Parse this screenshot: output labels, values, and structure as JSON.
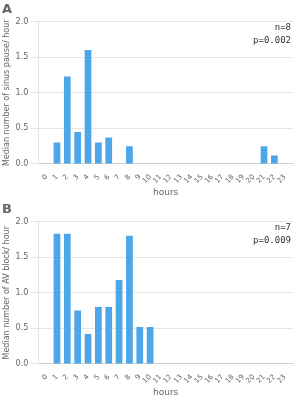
{
  "chart_data": [
    {
      "type": "bar",
      "title": "A",
      "annotation": [
        "n=8",
        "p=0.002"
      ],
      "xlabel": "hours",
      "ylabel": "Median number of sinus pause/ hour",
      "x": [
        0,
        1,
        2,
        3,
        4,
        5,
        6,
        7,
        8,
        9,
        10,
        11,
        12,
        13,
        14,
        15,
        16,
        17,
        18,
        19,
        20,
        21,
        22,
        23
      ],
      "values": [
        0.0,
        0.3,
        1.23,
        0.45,
        1.6,
        0.3,
        0.37,
        0.0,
        0.25,
        0.0,
        0.0,
        0.0,
        0.0,
        0.0,
        0.0,
        0.0,
        0.0,
        0.0,
        0.0,
        0.0,
        0.0,
        0.25,
        0.12,
        0.0
      ],
      "color": "#4da6e8",
      "xlim": [
        -0.8,
        23.8
      ],
      "xticks": [
        0,
        1,
        2,
        3,
        4,
        5,
        6,
        7,
        8,
        9,
        10,
        11,
        12,
        13,
        14,
        15,
        16,
        17,
        18,
        19,
        20,
        21,
        22,
        23
      ],
      "ylim": [
        0,
        2.0
      ],
      "yticks": [
        {
          "value": 0.0,
          "label": "0.0"
        },
        {
          "value": 0.5,
          "label": "0.5"
        },
        {
          "value": 1.0,
          "label": "1.0"
        },
        {
          "value": 1.5,
          "label": "1.5"
        },
        {
          "value": 2.0,
          "label": "2.0"
        }
      ],
      "grid": "y"
    },
    {
      "type": "bar",
      "title": "B",
      "annotation": [
        "n=7",
        "p=0.009"
      ],
      "xlabel": "hours",
      "ylabel": "Median number of AV block/ hour",
      "x": [
        0,
        1,
        2,
        3,
        4,
        5,
        6,
        7,
        8,
        9,
        10,
        11,
        12,
        13,
        14,
        15,
        16,
        17,
        18,
        19,
        20,
        21,
        22,
        23
      ],
      "values": [
        0.0,
        1.83,
        1.83,
        0.75,
        0.42,
        0.8,
        0.8,
        1.18,
        1.8,
        0.52,
        0.52,
        0.0,
        0.0,
        0.0,
        0.0,
        0.0,
        0.0,
        0.0,
        0.0,
        0.0,
        0.0,
        0.0,
        0.0,
        0.0
      ],
      "color": "#4da6e8",
      "xlim": [
        -0.8,
        23.8
      ],
      "xticks": [
        0,
        1,
        2,
        3,
        4,
        5,
        6,
        7,
        8,
        9,
        10,
        11,
        12,
        13,
        14,
        15,
        16,
        17,
        18,
        19,
        20,
        21,
        22,
        23
      ],
      "ylim": [
        0,
        2.0
      ],
      "yticks": [
        {
          "value": 0.0,
          "label": "0.0"
        },
        {
          "value": 0.5,
          "label": "0.5"
        },
        {
          "value": 1.0,
          "label": "1.0"
        },
        {
          "value": 1.5,
          "label": "1.5"
        },
        {
          "value": 2.0,
          "label": "2.0"
        }
      ],
      "grid": "y"
    }
  ]
}
